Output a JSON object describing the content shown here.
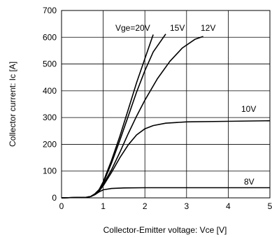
{
  "chart_data": {
    "type": "line",
    "xlabel": "Collector-Emitter voltage: Vce [V]",
    "ylabel": "Collector current: Ic [A]",
    "xlim": [
      0,
      5
    ],
    "ylim": [
      0,
      700
    ],
    "x_ticks": [
      "0",
      "1",
      "2",
      "3",
      "4",
      "5"
    ],
    "y_ticks": [
      "0",
      "100",
      "200",
      "300",
      "400",
      "500",
      "600",
      "700"
    ],
    "grid": true,
    "series": [
      {
        "name": "Vge=20V",
        "points": [
          [
            0,
            0
          ],
          [
            0.6,
            2
          ],
          [
            0.7,
            5
          ],
          [
            0.8,
            15
          ],
          [
            0.9,
            30
          ],
          [
            1.0,
            60
          ],
          [
            1.2,
            140
          ],
          [
            1.4,
            230
          ],
          [
            1.6,
            330
          ],
          [
            1.8,
            430
          ],
          [
            2.0,
            520
          ],
          [
            2.2,
            610
          ]
        ]
      },
      {
        "name": "15V",
        "points": [
          [
            0,
            0
          ],
          [
            0.6,
            2
          ],
          [
            0.7,
            5
          ],
          [
            0.8,
            15
          ],
          [
            0.9,
            30
          ],
          [
            1.0,
            55
          ],
          [
            1.2,
            130
          ],
          [
            1.4,
            215
          ],
          [
            1.6,
            305
          ],
          [
            1.8,
            395
          ],
          [
            2.0,
            475
          ],
          [
            2.2,
            545
          ],
          [
            2.5,
            612
          ]
        ]
      },
      {
        "name": "12V",
        "points": [
          [
            0,
            0
          ],
          [
            0.6,
            2
          ],
          [
            0.7,
            5
          ],
          [
            0.8,
            14
          ],
          [
            0.9,
            28
          ],
          [
            1.0,
            50
          ],
          [
            1.2,
            105
          ],
          [
            1.4,
            170
          ],
          [
            1.6,
            240
          ],
          [
            1.8,
            305
          ],
          [
            2.0,
            365
          ],
          [
            2.3,
            445
          ],
          [
            2.6,
            510
          ],
          [
            2.9,
            560
          ],
          [
            3.2,
            592
          ],
          [
            3.4,
            603
          ]
        ]
      },
      {
        "name": "10V",
        "points": [
          [
            0,
            0
          ],
          [
            0.6,
            2
          ],
          [
            0.7,
            5
          ],
          [
            0.8,
            12
          ],
          [
            0.9,
            25
          ],
          [
            1.0,
            45
          ],
          [
            1.2,
            95
          ],
          [
            1.4,
            150
          ],
          [
            1.6,
            198
          ],
          [
            1.8,
            235
          ],
          [
            2.0,
            258
          ],
          [
            2.2,
            270
          ],
          [
            2.5,
            279
          ],
          [
            3.0,
            284
          ],
          [
            4.0,
            286
          ],
          [
            5.0,
            288
          ]
        ]
      },
      {
        "name": "8V",
        "points": [
          [
            0,
            0
          ],
          [
            0.6,
            2
          ],
          [
            0.7,
            5
          ],
          [
            0.8,
            12
          ],
          [
            0.9,
            22
          ],
          [
            1.0,
            30
          ],
          [
            1.2,
            35
          ],
          [
            1.5,
            37
          ],
          [
            2.0,
            38
          ],
          [
            3.0,
            38
          ],
          [
            4.0,
            38
          ],
          [
            5.0,
            38
          ]
        ]
      }
    ]
  }
}
